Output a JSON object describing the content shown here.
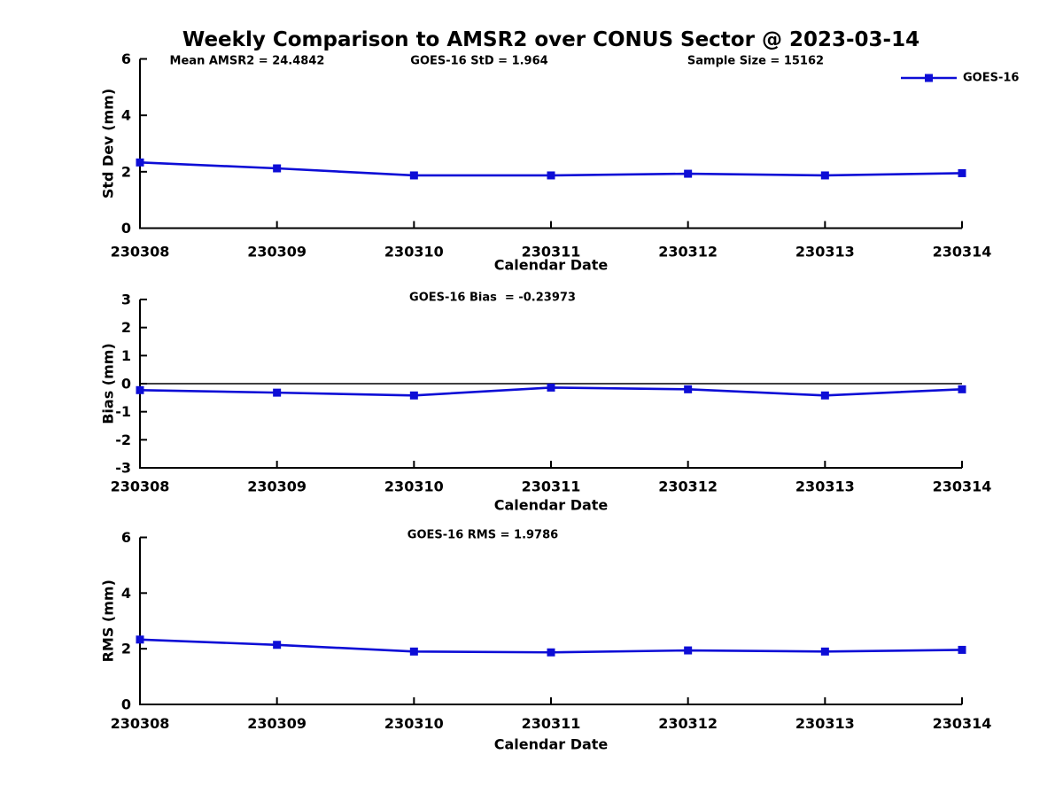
{
  "figure": {
    "title": "Weekly Comparison to AMSR2 over CONUS Sector @ 2023-03-14"
  },
  "legend": {
    "label": "GOES-16",
    "position": "top-right",
    "color": "#0d0dd6"
  },
  "colors": {
    "line": "#0d0dd6",
    "axis": "#000000",
    "text": "#000000",
    "background": "#ffffff"
  },
  "chart_data": [
    {
      "type": "line",
      "name": "std_dev",
      "annotations": [
        "Mean AMSR2 = 24.4842",
        "GOES-16 StD = 1.964",
        "Sample Size = 15162"
      ],
      "ylabel": "Std Dev (mm)",
      "xlabel": "Calendar Date",
      "categories": [
        "230308",
        "230309",
        "230310",
        "230311",
        "230312",
        "230313",
        "230314"
      ],
      "yticks": [
        0,
        2,
        4,
        6
      ],
      "ylim": [
        0,
        6
      ],
      "grid": false,
      "legend_entries": [
        "GOES-16"
      ],
      "series": [
        {
          "name": "GOES-16",
          "values": [
            2.33,
            2.12,
            1.87,
            1.87,
            1.93,
            1.87,
            1.95
          ]
        }
      ]
    },
    {
      "type": "line",
      "name": "bias",
      "annotations": [
        "GOES-16 Bias  = -0.23973"
      ],
      "ylabel": "Bias (mm)",
      "xlabel": "Calendar Date",
      "categories": [
        "230308",
        "230309",
        "230310",
        "230311",
        "230312",
        "230313",
        "230314"
      ],
      "yticks": [
        -3,
        -2,
        -1,
        0,
        1,
        2,
        3
      ],
      "ylim": [
        -3,
        3
      ],
      "zero_line": true,
      "grid": false,
      "series": [
        {
          "name": "GOES-16",
          "values": [
            -0.23,
            -0.32,
            -0.42,
            -0.14,
            -0.2,
            -0.42,
            -0.2
          ]
        }
      ]
    },
    {
      "type": "line",
      "name": "rms",
      "annotations": [
        "GOES-16 RMS = 1.9786"
      ],
      "ylabel": "RMS (mm)",
      "xlabel": "Calendar Date",
      "categories": [
        "230308",
        "230309",
        "230310",
        "230311",
        "230312",
        "230313",
        "230314"
      ],
      "yticks": [
        0,
        2,
        4,
        6
      ],
      "ylim": [
        0,
        6
      ],
      "grid": false,
      "series": [
        {
          "name": "GOES-16",
          "values": [
            2.33,
            2.14,
            1.9,
            1.87,
            1.94,
            1.9,
            1.96
          ]
        }
      ]
    }
  ]
}
